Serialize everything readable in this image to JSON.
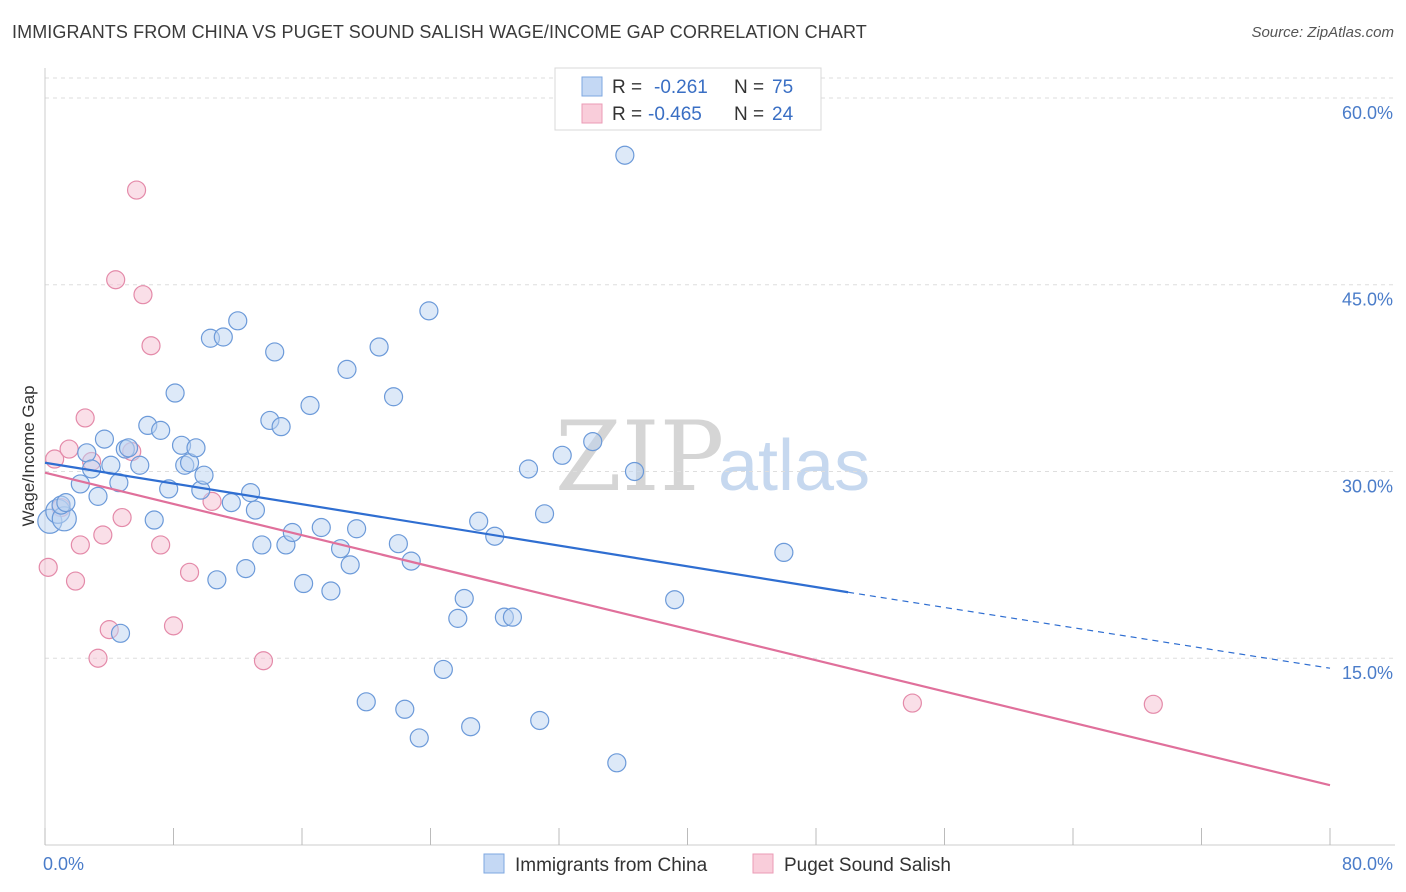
{
  "header": {
    "title": "IMMIGRANTS FROM CHINA VS PUGET SOUND SALISH WAGE/INCOME GAP CORRELATION CHART",
    "source": "Source: ZipAtlas.com"
  },
  "watermark": {
    "part1": "ZIP",
    "part2": "atlas"
  },
  "legend": {
    "series": [
      {
        "r_label": "R =",
        "r_value": "-0.261",
        "n_label": "N =",
        "n_value": "75"
      },
      {
        "r_label": "R =",
        "r_value": "-0.465",
        "n_label": "N =",
        "n_value": "24"
      }
    ]
  },
  "chart_data": {
    "type": "scatter",
    "title": "IMMIGRANTS FROM CHINA VS PUGET SOUND SALISH WAGE/INCOME GAP CORRELATION CHART",
    "xlabel": "",
    "ylabel": "Wage/Income Gap",
    "xlim": [
      0,
      80
    ],
    "ylim": [
      0,
      61
    ],
    "x_tick_labels": [
      "0.0%",
      "80.0%"
    ],
    "y_ticks": [
      15,
      30,
      45,
      60
    ],
    "y_tick_labels": [
      "15.0%",
      "30.0%",
      "45.0%",
      "60.0%"
    ],
    "grid": true,
    "legend_placement": "top-center",
    "colors": {
      "china": "#5b8fd6",
      "salish": "#e57fa3",
      "china_line": "#2f6ed1",
      "salish_line": "#e0709b"
    },
    "series": [
      {
        "name": "Immigrants from China",
        "r": -0.261,
        "n": 75,
        "trend": {
          "x0": 0,
          "y0": 30.7,
          "x1": 50,
          "y1": 20.3,
          "dashed_to_x": 80,
          "dashed_to_y": 14.2
        },
        "points": [
          [
            0.3,
            26.0
          ],
          [
            0.8,
            26.8
          ],
          [
            1.2,
            26.2
          ],
          [
            1.0,
            27.3
          ],
          [
            1.3,
            27.5
          ],
          [
            2.2,
            29.0
          ],
          [
            2.6,
            31.5
          ],
          [
            2.9,
            30.2
          ],
          [
            3.3,
            28.0
          ],
          [
            3.7,
            32.6
          ],
          [
            4.1,
            30.5
          ],
          [
            4.6,
            29.1
          ],
          [
            4.7,
            17.0
          ],
          [
            5.0,
            31.8
          ],
          [
            5.2,
            31.9
          ],
          [
            5.9,
            30.5
          ],
          [
            6.4,
            33.7
          ],
          [
            6.8,
            26.1
          ],
          [
            7.2,
            33.3
          ],
          [
            7.7,
            28.6
          ],
          [
            8.1,
            36.3
          ],
          [
            8.5,
            32.1
          ],
          [
            8.7,
            30.5
          ],
          [
            9.0,
            30.7
          ],
          [
            9.4,
            31.9
          ],
          [
            9.7,
            28.5
          ],
          [
            9.9,
            29.7
          ],
          [
            10.3,
            40.7
          ],
          [
            10.7,
            21.3
          ],
          [
            11.1,
            40.8
          ],
          [
            11.6,
            27.5
          ],
          [
            12.0,
            42.1
          ],
          [
            12.5,
            22.2
          ],
          [
            12.8,
            28.3
          ],
          [
            13.1,
            26.9
          ],
          [
            13.5,
            24.1
          ],
          [
            14.0,
            34.1
          ],
          [
            14.3,
            39.6
          ],
          [
            14.7,
            33.6
          ],
          [
            15.0,
            24.1
          ],
          [
            15.4,
            25.1
          ],
          [
            16.1,
            21.0
          ],
          [
            16.5,
            35.3
          ],
          [
            17.2,
            25.5
          ],
          [
            17.8,
            20.4
          ],
          [
            18.4,
            23.8
          ],
          [
            18.8,
            38.2
          ],
          [
            19.0,
            22.5
          ],
          [
            19.4,
            25.4
          ],
          [
            20.0,
            11.5
          ],
          [
            20.8,
            40.0
          ],
          [
            21.7,
            36.0
          ],
          [
            22.0,
            24.2
          ],
          [
            22.4,
            10.9
          ],
          [
            22.8,
            22.8
          ],
          [
            23.3,
            8.6
          ],
          [
            23.9,
            42.9
          ],
          [
            24.8,
            14.1
          ],
          [
            25.7,
            18.2
          ],
          [
            26.1,
            19.8
          ],
          [
            26.5,
            9.5
          ],
          [
            27.0,
            26.0
          ],
          [
            28.0,
            24.8
          ],
          [
            28.6,
            18.3
          ],
          [
            29.1,
            18.3
          ],
          [
            30.1,
            30.2
          ],
          [
            30.8,
            10.0
          ],
          [
            31.1,
            26.6
          ],
          [
            32.2,
            31.3
          ],
          [
            34.1,
            32.4
          ],
          [
            35.6,
            6.6
          ],
          [
            36.1,
            55.4
          ],
          [
            36.7,
            30.0
          ],
          [
            39.2,
            19.7
          ],
          [
            46.0,
            23.5
          ]
        ]
      },
      {
        "name": "Puget Sound Salish",
        "r": -0.465,
        "n": 24,
        "trend": {
          "x0": 0,
          "y0": 29.9,
          "x1": 80,
          "y1": 4.8
        },
        "points": [
          [
            0.2,
            22.3
          ],
          [
            0.6,
            31.0
          ],
          [
            1.0,
            27.1
          ],
          [
            1.5,
            31.8
          ],
          [
            1.9,
            21.2
          ],
          [
            2.2,
            24.1
          ],
          [
            2.5,
            34.3
          ],
          [
            2.9,
            30.8
          ],
          [
            3.3,
            15.0
          ],
          [
            3.6,
            24.9
          ],
          [
            4.0,
            17.3
          ],
          [
            4.4,
            45.4
          ],
          [
            4.8,
            26.3
          ],
          [
            5.4,
            31.6
          ],
          [
            5.7,
            52.6
          ],
          [
            6.1,
            44.2
          ],
          [
            6.6,
            40.1
          ],
          [
            7.2,
            24.1
          ],
          [
            8.0,
            17.6
          ],
          [
            9.0,
            21.9
          ],
          [
            10.4,
            27.6
          ],
          [
            13.6,
            14.8
          ],
          [
            54.0,
            11.4
          ],
          [
            69.0,
            11.3
          ]
        ]
      }
    ]
  },
  "bottom_legend": {
    "china_label": "Immigrants from China",
    "salish_label": "Puget Sound Salish"
  }
}
